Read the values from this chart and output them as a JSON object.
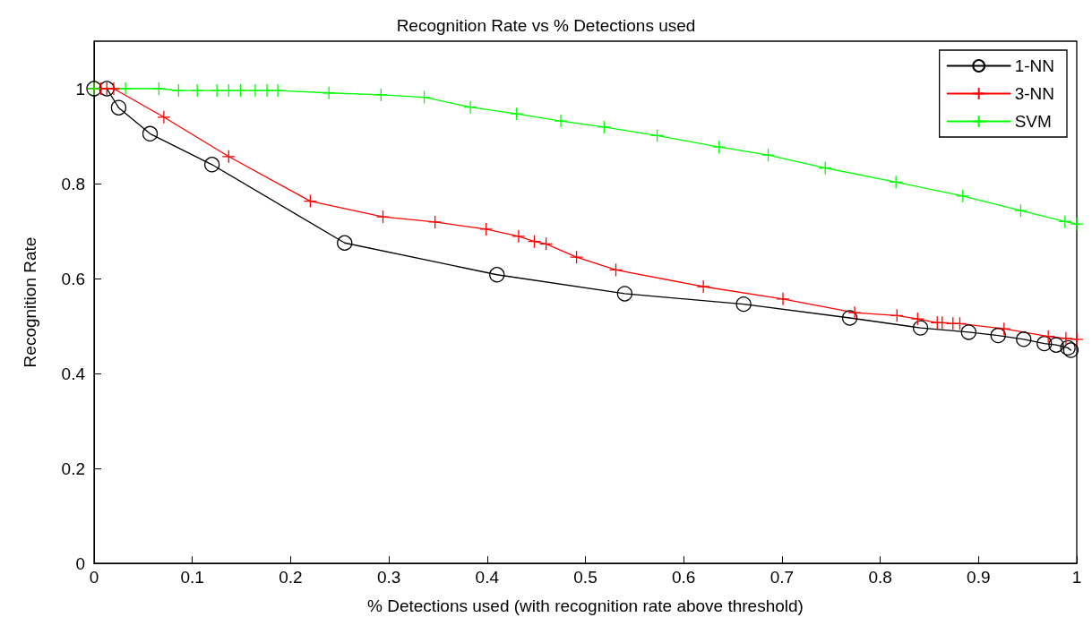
{
  "chart_data": {
    "type": "line",
    "title": "Recognition Rate vs % Detections used",
    "xlabel": "% Detections used (with recognition rate above threshold)",
    "ylabel": "Recognition Rate",
    "xlim": [
      0,
      1
    ],
    "xticks": [
      0,
      0.1,
      0.2,
      0.3,
      0.4,
      0.5,
      0.6,
      0.7,
      0.8,
      0.9,
      1
    ],
    "ylim": [
      0,
      1.1
    ],
    "yticks": [
      0,
      0.2,
      0.4,
      0.6,
      0.8,
      1
    ],
    "grid": false,
    "legend": "top right",
    "line_style": "solid",
    "series": [
      {
        "name": "1-NN",
        "color": "#000000",
        "marker": "circle",
        "x": [
          0,
          0.013,
          0.025,
          0.057,
          0.12,
          0.255,
          0.41,
          0.54,
          0.661,
          0.769,
          0.841,
          0.89,
          0.92,
          0.946,
          0.967,
          0.979,
          0.991,
          0.994
        ],
        "values": [
          1,
          1,
          0.96,
          0.905,
          0.84,
          0.675,
          0.608,
          0.568,
          0.546,
          0.517,
          0.496,
          0.487,
          0.48,
          0.472,
          0.463,
          0.46,
          0.454,
          0.449
        ]
      },
      {
        "name": "3-NN",
        "color": "#ff0000",
        "marker": "cross",
        "x": [
          0,
          0.007,
          0.013,
          0.02,
          0.071,
          0.137,
          0.22,
          0.294,
          0.347,
          0.399,
          0.432,
          0.448,
          0.46,
          0.491,
          0.531,
          0.62,
          0.701,
          0.774,
          0.817,
          0.838,
          0.858,
          0.863,
          0.874,
          0.881,
          0.926,
          0.971,
          0.989,
          1
        ],
        "values": [
          1,
          1,
          1,
          1,
          0.94,
          0.857,
          0.763,
          0.73,
          0.719,
          0.704,
          0.689,
          0.678,
          0.673,
          0.645,
          0.618,
          0.583,
          0.557,
          0.528,
          0.522,
          0.515,
          0.507,
          0.507,
          0.505,
          0.505,
          0.494,
          0.478,
          0.474,
          0.472
        ]
      },
      {
        "name": "SVM",
        "color": "#00ff00",
        "marker": "cross",
        "x": [
          0,
          0.032,
          0.066,
          0.086,
          0.105,
          0.125,
          0.137,
          0.149,
          0.164,
          0.176,
          0.187,
          0.239,
          0.292,
          0.336,
          0.383,
          0.43,
          0.475,
          0.519,
          0.573,
          0.636,
          0.686,
          0.744,
          0.816,
          0.884,
          0.943,
          0.988,
          1
        ],
        "values": [
          1,
          1,
          1,
          0.996,
          0.996,
          0.996,
          0.996,
          0.996,
          0.996,
          0.996,
          0.996,
          0.991,
          0.987,
          0.982,
          0.961,
          0.947,
          0.932,
          0.919,
          0.901,
          0.877,
          0.86,
          0.833,
          0.803,
          0.774,
          0.743,
          0.72,
          0.715
        ]
      }
    ]
  }
}
